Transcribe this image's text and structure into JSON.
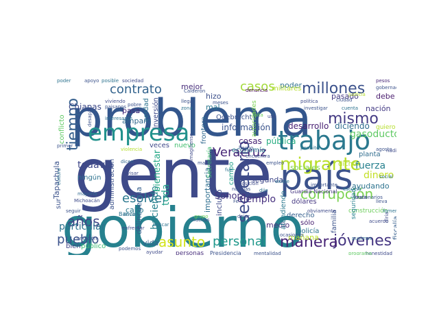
{
  "wordcloud": {
    "words": [
      {
        "text": "gente",
        "color": "#3e4a89"
      },
      {
        "text": "gobierno",
        "color": "#26818e"
      },
      {
        "text": "problema",
        "color": "#33568c"
      },
      {
        "text": "país",
        "color": "#3b528b"
      },
      {
        "text": "trabajo",
        "color": "#2a788e"
      },
      {
        "text": "empresa",
        "color": "#21918c"
      },
      {
        "text": "secretario",
        "color": "#3e4c8a"
      },
      {
        "text": "migrante",
        "color": "#b8de29"
      },
      {
        "text": "millones",
        "color": "#3b518b"
      },
      {
        "text": "jóvenes",
        "color": "#453581"
      },
      {
        "text": "manera",
        "color": "#482576"
      },
      {
        "text": "corrupción",
        "color": "#7ad151"
      },
      {
        "text": "tiempo",
        "color": "#355f8d"
      },
      {
        "text": "mismo",
        "color": "#443a83"
      },
      {
        "text": "asunto",
        "color": "#d2e21b"
      },
      {
        "text": "personal",
        "color": "#1f988b"
      },
      {
        "text": "años",
        "color": "#404688"
      },
      {
        "text": "pueblo",
        "color": "#3b528b"
      },
      {
        "text": "esolver",
        "color": "#2a788e"
      },
      {
        "text": "contrato",
        "color": "#33638d"
      },
      {
        "text": "casos",
        "color": "#a2da37"
      },
      {
        "text": "Veracruz",
        "color": "#482878"
      },
      {
        "text": "haciendo",
        "color": "#26818e"
      },
      {
        "text": "ejemplo",
        "color": "#46307e"
      },
      {
        "text": "todavía",
        "color": "#3f4788"
      },
      {
        "text": "dinero",
        "color": "#c2df23"
      },
      {
        "text": "fuerza",
        "color": "#27808e"
      },
      {
        "text": "gasoducto",
        "color": "#5ec962"
      },
      {
        "text": "toda",
        "color": "#1f9e89"
      },
      {
        "text": "bienestar",
        "color": "#22a785"
      },
      {
        "text": "particular",
        "color": "#2c738e"
      },
      {
        "text": "Sonora",
        "color": "#46337e"
      },
      {
        "text": "cosas",
        "color": "#482475"
      },
      {
        "text": "pública",
        "color": "#27ad81"
      },
      {
        "text": "desarrollo",
        "color": "#482173"
      },
      {
        "text": "diciendo",
        "color": "#2f6c8e"
      },
      {
        "text": "información",
        "color": "#3a538b"
      },
      {
        "text": "segunda",
        "color": "#3f4889"
      },
      {
        "text": "sociales",
        "color": "#7fd34e"
      },
      {
        "text": "ayudando",
        "color": "#2c728e"
      },
      {
        "text": "pasado",
        "color": "#443983"
      },
      {
        "text": "debe",
        "color": "#481b6d"
      },
      {
        "text": "poder",
        "color": "#2d708e"
      },
      {
        "text": "mejor",
        "color": "#472c7a"
      },
      {
        "text": "hizo",
        "color": "#3c4f8a"
      },
      {
        "text": "mal",
        "color": "#2a768e"
      },
      {
        "text": "nación",
        "color": "#443b84"
      },
      {
        "text": "Tapachula",
        "color": "#3b528b"
      },
      {
        "text": "conflicto",
        "color": "#5ec962"
      },
      {
        "text": "Chiapas",
        "color": "#3e4a89"
      },
      {
        "text": "verdad",
        "color": "#2c728e"
      },
      {
        "text": "pasa",
        "color": "#482878"
      },
      {
        "text": "amparo",
        "color": "#31688e"
      },
      {
        "text": "cabo",
        "color": "#29798e"
      },
      {
        "text": "veces",
        "color": "#3f4889"
      },
      {
        "text": "nuevo",
        "color": "#44bf70"
      },
      {
        "text": "economía",
        "color": "#2a788e"
      },
      {
        "text": "campo",
        "color": "#1f9f88"
      },
      {
        "text": "planta",
        "color": "#2f6c8e"
      },
      {
        "text": "dicho",
        "color": "#b5de2b"
      },
      {
        "text": "importancia",
        "color": "#2e6e8e"
      },
      {
        "text": "incluso",
        "color": "#3e4989"
      },
      {
        "text": "dólares",
        "color": "#453882"
      },
      {
        "text": "derecho",
        "color": "#355f8d"
      },
      {
        "text": "sólo",
        "color": "#482071"
      },
      {
        "text": "policía",
        "color": "#2c728e"
      },
      {
        "text": "familia",
        "color": "#3b528b"
      },
      {
        "text": "fiscalía",
        "color": "#355e8d"
      },
      {
        "text": "medio",
        "color": "#472d7b"
      },
      {
        "text": "mañana",
        "color": "#b8de29"
      },
      {
        "text": "vida",
        "color": "#33628d"
      },
      {
        "text": "delincuencia",
        "color": "#355f8d"
      },
      {
        "text": "bien",
        "color": "#414487"
      },
      {
        "text": "público",
        "color": "#3dbc74"
      },
      {
        "text": "administración",
        "color": "#3b528b"
      },
      {
        "text": "ningún",
        "color": "#2c728e"
      },
      {
        "text": "frontera",
        "color": "#31688e"
      },
      {
        "text": "inversión",
        "color": "#3e4a89"
      },
      {
        "text": "Odebrecht",
        "color": "#3b528b"
      },
      {
        "text": "atendiendo",
        "color": "#2a788e"
      },
      {
        "text": "sur",
        "color": "#3b528b"
      },
      {
        "text": "ir",
        "color": "#3e4a89"
      },
      {
        "text": "autoridades",
        "color": "#7ad151"
      },
      {
        "text": "militares",
        "color": "#b5de2b"
      },
      {
        "text": "Secretaría",
        "color": "#44bf70"
      },
      {
        "text": "construcción",
        "color": "#6ccd5a"
      },
      {
        "text": "seguridad",
        "color": "#26818e"
      },
      {
        "text": "quiero",
        "color": "#b5de2b"
      },
      {
        "text": "personas",
        "color": "#472d7b"
      },
      {
        "text": "Guardia Nacional",
        "color": "#453581"
      },
      {
        "text": "Presidencia",
        "color": "#3b528b"
      },
      {
        "text": "Banco",
        "color": "#2c728e"
      },
      {
        "text": "mayoría",
        "color": "#31688e"
      },
      {
        "text": "Michoacán",
        "color": "#3e4a89"
      },
      {
        "text": "Calderón",
        "color": "#3b528b"
      },
      {
        "text": "denuncia",
        "color": "#440154"
      },
      {
        "text": "política",
        "color": "#3e4a89"
      },
      {
        "text": "cuenta",
        "color": "#2c728e"
      },
      {
        "text": "gobernador",
        "color": "#3b528b"
      },
      {
        "text": "pesos",
        "color": "#482878"
      },
      {
        "text": "empleo",
        "color": "#3b528b"
      },
      {
        "text": "dicen",
        "color": "#31688e"
      },
      {
        "text": "revisar",
        "color": "#3e4a89"
      },
      {
        "text": "funcionarios",
        "color": "#3b528b"
      },
      {
        "text": "escuela",
        "color": "#2c728e"
      },
      {
        "text": "honestidad",
        "color": "#3e4a89"
      },
      {
        "text": "programa",
        "color": "#5ec962"
      },
      {
        "text": "agosto",
        "color": "#3b528b"
      },
      {
        "text": "sociedad",
        "color": "#3e4a89"
      },
      {
        "text": "posible",
        "color": "#2c728e"
      },
      {
        "text": "apoyo",
        "color": "#3b528b"
      },
      {
        "text": "poder",
        "color": "#2c728e"
      },
      {
        "text": "pobre",
        "color": "#3b528b"
      },
      {
        "text": "darle",
        "color": "#3e4a89"
      },
      {
        "text": "zona",
        "color": "#2c728e"
      },
      {
        "text": "llega",
        "color": "#3b528b"
      },
      {
        "text": "viviendo",
        "color": "#3e4a89"
      },
      {
        "text": "paisanos",
        "color": "#3b528b"
      },
      {
        "text": "interesante",
        "color": "#2c728e"
      },
      {
        "text": "desapa",
        "color": "#3b528b"
      },
      {
        "text": "acuerdo",
        "color": "#3e4a89"
      },
      {
        "text": "primer",
        "color": "#3b528b"
      },
      {
        "text": "permite",
        "color": "#2c728e"
      },
      {
        "text": "hecho",
        "color": "#3b528b"
      },
      {
        "text": "violencia",
        "color": "#b5de2b"
      },
      {
        "text": "falta",
        "color": "#6ccd5a"
      },
      {
        "text": "investigar",
        "color": "#3b528b"
      },
      {
        "text": "uso",
        "color": "#3e4a89"
      },
      {
        "text": "existe",
        "color": "#2c728e"
      },
      {
        "text": "seguir",
        "color": "#3b528b"
      },
      {
        "text": "llevar",
        "color": "#2c728e"
      },
      {
        "text": "muchas",
        "color": "#3b528b"
      },
      {
        "text": "buscar",
        "color": "#2c728e"
      },
      {
        "text": "podemos",
        "color": "#3b528b"
      },
      {
        "text": "enfrentar",
        "color": "#3e4a89"
      },
      {
        "text": "grupo",
        "color": "#6ccd5a"
      },
      {
        "text": "dejar",
        "color": "#3b528b"
      },
      {
        "text": "ayudar",
        "color": "#3e4a89"
      },
      {
        "text": "meses",
        "color": "#3b528b"
      },
      {
        "text": "cultura",
        "color": "#2c728e"
      },
      {
        "text": "ocasiones",
        "color": "#3b528b"
      },
      {
        "text": "posición",
        "color": "#3e4a89"
      },
      {
        "text": "noticias",
        "color": "#3b528b"
      },
      {
        "text": "social",
        "color": "#2c728e"
      },
      {
        "text": "mentalidad",
        "color": "#3b528b"
      },
      {
        "text": "diría",
        "color": "#3e4a89"
      },
      {
        "text": "justicia",
        "color": "#b5de2b"
      },
      {
        "text": "ciudad",
        "color": "#3b528b"
      },
      {
        "text": "imagínense",
        "color": "#3e4a89"
      },
      {
        "text": "Fe",
        "color": "#3b528b"
      },
      {
        "text": "dije",
        "color": "#2c728e"
      },
      {
        "text": "condición",
        "color": "#3b528b"
      },
      {
        "text": "nadie",
        "color": "#3e4a89"
      },
      {
        "text": "pusimos",
        "color": "#2c728e"
      },
      {
        "text": "importante",
        "color": "#3b528b"
      },
      {
        "text": "obviamente",
        "color": "#3e4a89"
      },
      {
        "text": "mano",
        "color": "#3b528b"
      },
      {
        "text": "fomento",
        "color": "#2c728e"
      },
      {
        "text": "lleva",
        "color": "#3b528b"
      },
      {
        "text": "trata",
        "color": "#3e4a89"
      },
      {
        "text": "fue",
        "color": "#2c728e"
      },
      {
        "text": "encuentra",
        "color": "#3b528b"
      }
    ]
  }
}
